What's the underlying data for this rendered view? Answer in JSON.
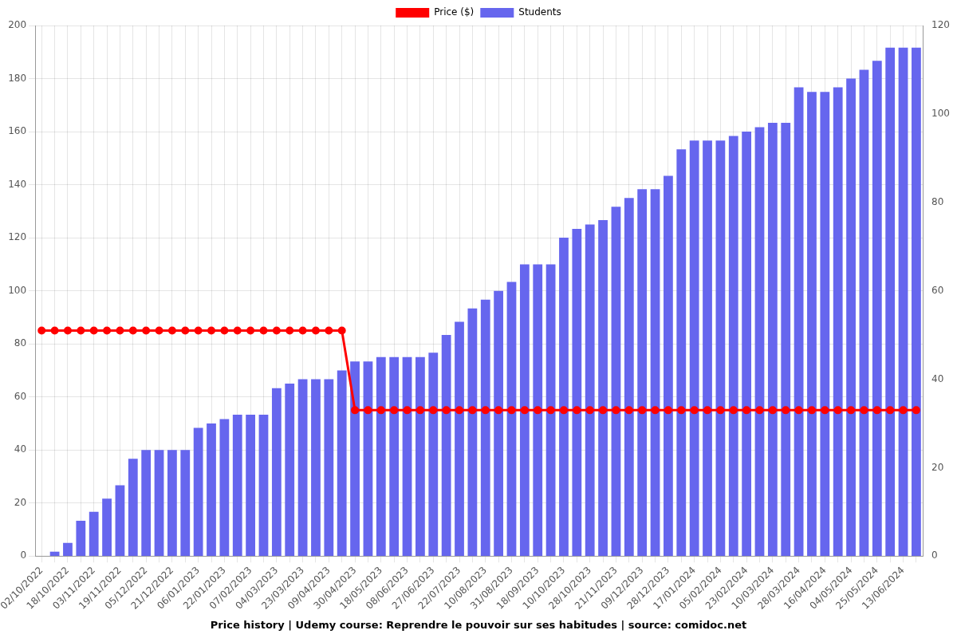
{
  "chart_data": {
    "type": "bar",
    "title": "Price history | Udemy course: Reprendre le pouvoir sur ses habitudes | source: comidoc.net",
    "categories": [
      "02/10/2022",
      null,
      "18/10/2022",
      null,
      "03/11/2022",
      null,
      "19/11/2022",
      null,
      "05/12/2022",
      null,
      "21/12/2022",
      null,
      "06/01/2023",
      null,
      "22/01/2023",
      null,
      "07/02/2023",
      null,
      "04/03/2023",
      null,
      "23/03/2023",
      null,
      "09/04/2023",
      null,
      "30/04/2023",
      null,
      "18/05/2023",
      null,
      "08/06/2023",
      null,
      "27/06/2023",
      null,
      "22/07/2023",
      null,
      "10/08/2023",
      null,
      "31/08/2023",
      null,
      "18/09/2023",
      null,
      "10/10/2023",
      null,
      "28/10/2023",
      null,
      "21/11/2023",
      null,
      "09/12/2023",
      null,
      "28/12/2023",
      null,
      "17/01/2024",
      null,
      "05/02/2024",
      null,
      "23/02/2024",
      null,
      "10/03/2024",
      null,
      "28/03/2024",
      null,
      "16/04/2024",
      null,
      "04/05/2024",
      null,
      "25/05/2024",
      null,
      "13/06/2024",
      null
    ],
    "series": [
      {
        "name": "Price ($)",
        "type": "line",
        "color": "#ff0000",
        "marker": "circle",
        "values": [
          85,
          85,
          85,
          85,
          85,
          85,
          85,
          85,
          85,
          85,
          85,
          85,
          85,
          85,
          85,
          85,
          85,
          85,
          85,
          85,
          85,
          85,
          85,
          85,
          55,
          55,
          55,
          55,
          55,
          55,
          55,
          55,
          55,
          55,
          55,
          55,
          55,
          55,
          55,
          55,
          55,
          55,
          55,
          55,
          55,
          55,
          55,
          55,
          55,
          55,
          55,
          55,
          55,
          55,
          55,
          55,
          55,
          55,
          55,
          55,
          55,
          55,
          55,
          55,
          55,
          55,
          55,
          55
        ]
      },
      {
        "name": "Students",
        "type": "bar",
        "color": "#6666ee",
        "axis": "y2",
        "values": [
          0,
          1,
          3,
          8,
          10,
          13,
          16,
          22,
          24,
          24,
          24,
          24,
          29,
          30,
          31,
          32,
          32,
          32,
          38,
          39,
          40,
          40,
          40,
          42,
          44,
          44,
          45,
          45,
          45,
          45,
          46,
          50,
          53,
          56,
          58,
          60,
          62,
          66,
          66,
          66,
          72,
          74,
          75,
          76,
          79,
          81,
          83,
          83,
          86,
          92,
          94,
          94,
          94,
          95,
          96,
          97,
          98,
          98,
          106,
          105,
          105,
          106,
          108,
          110,
          112,
          115,
          115,
          115
        ]
      }
    ],
    "ylim": [
      0,
      200
    ],
    "yticks": [
      0,
      20,
      40,
      60,
      80,
      100,
      120,
      140,
      160,
      180,
      200
    ],
    "y2lim": [
      0,
      120
    ],
    "y2ticks": [
      0,
      20,
      40,
      60,
      80,
      100,
      120
    ],
    "grid": true,
    "legend": "top"
  }
}
